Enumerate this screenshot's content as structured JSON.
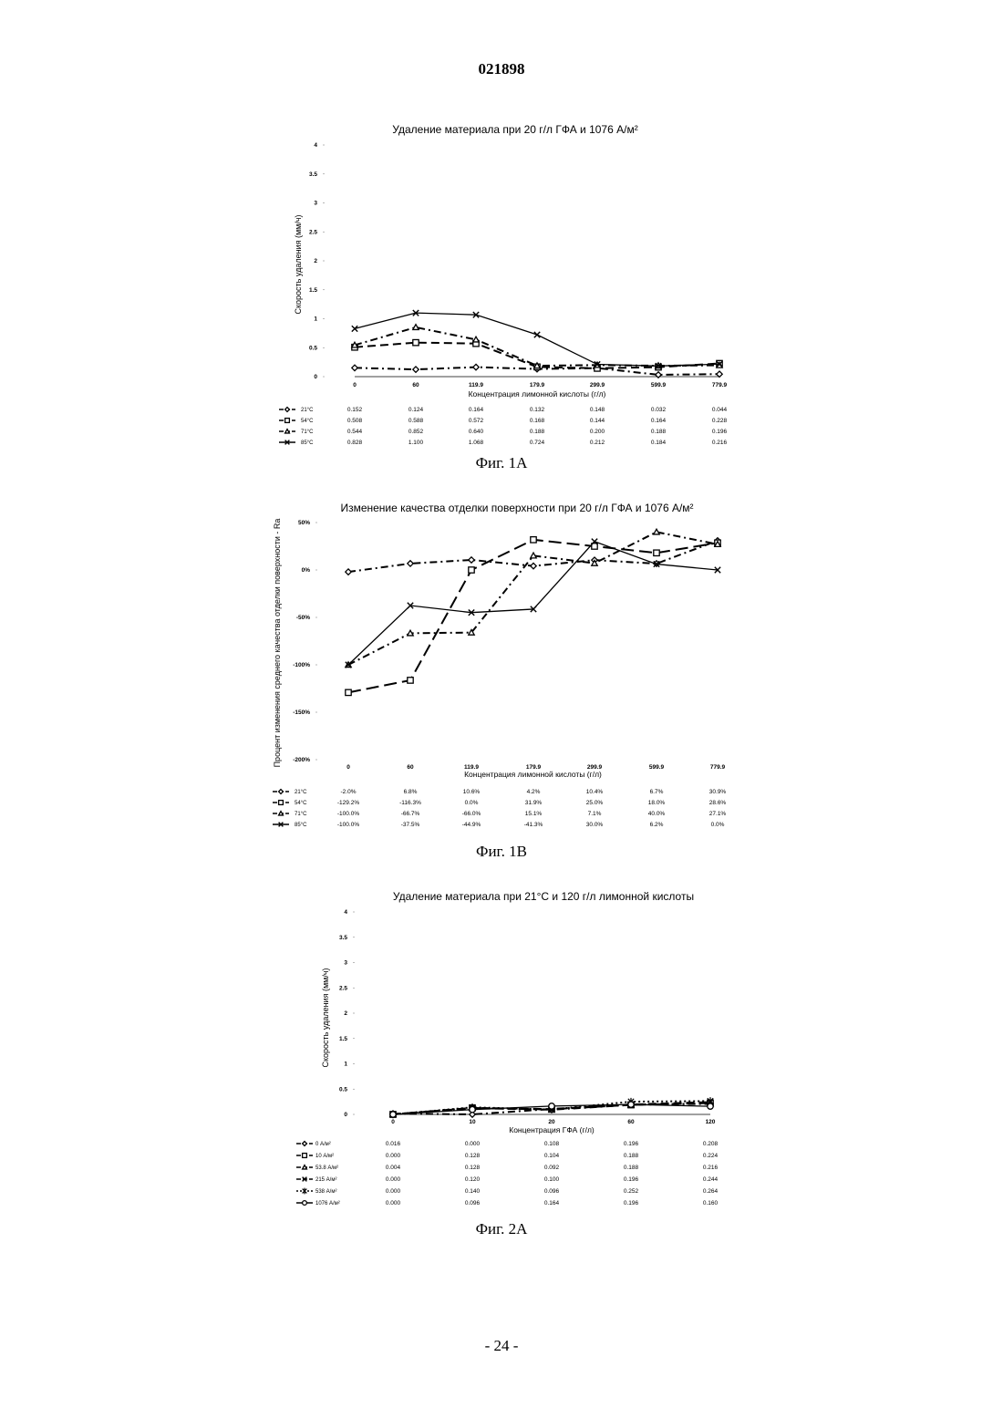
{
  "document": {
    "number": "021898",
    "page": "- 24 -",
    "captions": [
      "Фиг. 1A",
      "Фиг. 1B",
      "Фиг. 2A"
    ]
  },
  "chart_data": [
    {
      "type": "line",
      "title": "Удаление материала при 20 г/л ГФА и 1076 А/м²",
      "xlabel": "Концентрация лимонной кислоты (г/л)",
      "ylabel": "Скорость удаления (мм/ч)",
      "categories": [
        "0",
        "60",
        "119.9",
        "179.9",
        "299.9",
        "599.9",
        "779.9"
      ],
      "ylim": [
        0,
        4
      ],
      "yticks": [
        "4",
        "3.5",
        "3",
        "2.5",
        "2",
        "1.5",
        "1",
        "0.5",
        "0"
      ],
      "legend": "table-left",
      "series": [
        {
          "name": "21°C",
          "values": [
            0.152,
            0.124,
            0.164,
            0.132,
            0.148,
            0.032,
            0.044
          ],
          "labels": [
            "0.152",
            "0.124",
            "0.164",
            "0.132",
            "0.148",
            "0.032",
            "0.044"
          ],
          "marker": "diamond",
          "dash": "dashdot"
        },
        {
          "name": "54°C",
          "values": [
            0.508,
            0.588,
            0.572,
            0.168,
            0.144,
            0.164,
            0.228
          ],
          "labels": [
            "0.508",
            "0.588",
            "0.572",
            "0.168",
            "0.144",
            "0.164",
            "0.228"
          ],
          "marker": "square",
          "dash": "dash"
        },
        {
          "name": "71°C",
          "values": [
            0.544,
            0.852,
            0.64,
            0.188,
            0.2,
            0.188,
            0.196
          ],
          "labels": [
            "0.544",
            "0.852",
            "0.640",
            "0.188",
            "0.200",
            "0.188",
            "0.196"
          ],
          "marker": "triangle",
          "dash": "dashdot"
        },
        {
          "name": "85°C",
          "values": [
            0.828,
            1.1,
            1.068,
            0.724,
            0.212,
            0.184,
            0.216
          ],
          "labels": [
            "0.828",
            "1.100",
            "1.068",
            "0.724",
            "0.212",
            "0.184",
            "0.216"
          ],
          "marker": "x",
          "dash": "solid"
        }
      ]
    },
    {
      "type": "line",
      "title": "Изменение качества отделки поверхности при 20 г/л ГФА и 1076 А/м²",
      "xlabel": "Концентрация лимонной кислоты (г/л)",
      "ylabel": "Процент изменения среднего качества отделки поверхности - Ra",
      "categories": [
        "0",
        "60",
        "119.9",
        "179.9",
        "299.9",
        "599.9",
        "779.9"
      ],
      "ylim": [
        -200,
        50
      ],
      "yticks": [
        "50%",
        "0%",
        "-50%",
        "-100%",
        "-150%",
        "-200%"
      ],
      "legend": "table-left",
      "series": [
        {
          "name": "21°C",
          "values": [
            -2.0,
            6.8,
            10.6,
            4.2,
            10.4,
            6.7,
            30.9
          ],
          "labels": [
            "-2.0%",
            "6.8%",
            "10.6%",
            "4.2%",
            "10.4%",
            "6.7%",
            "30.9%"
          ],
          "marker": "diamond",
          "dash": "dashdot"
        },
        {
          "name": "54°C",
          "values": [
            -129.2,
            -116.3,
            0.0,
            31.9,
            25.0,
            18.0,
            28.6
          ],
          "labels": [
            "-129.2%",
            "-116.3%",
            "0.0%",
            "31.9%",
            "25.0%",
            "18.0%",
            "28.6%"
          ],
          "marker": "square",
          "dash": "longdash"
        },
        {
          "name": "71°C",
          "values": [
            -100.0,
            -66.7,
            -66.0,
            15.1,
            7.1,
            40.0,
            27.1
          ],
          "labels": [
            "-100.0%",
            "-66.7%",
            "-66.0%",
            "15.1%",
            "7.1%",
            "40.0%",
            "27.1%"
          ],
          "marker": "triangle",
          "dash": "dashdot"
        },
        {
          "name": "85°C",
          "values": [
            -100.0,
            -37.5,
            -44.9,
            -41.3,
            30.0,
            6.2,
            0.0
          ],
          "labels": [
            "-100.0%",
            "-37.5%",
            "-44.9%",
            "-41.3%",
            "30.0%",
            "6.2%",
            "0.0%"
          ],
          "marker": "x",
          "dash": "solid"
        }
      ]
    },
    {
      "type": "line",
      "title": "Удаление материала при 21°C и 120 г/л лимонной кислоты",
      "xlabel": "Концентрация ГФА (г/л)",
      "ylabel": "Скорость удаления (мм/ч)",
      "categories": [
        "0",
        "10",
        "20",
        "60",
        "120"
      ],
      "ylim": [
        0,
        4
      ],
      "yticks": [
        "4",
        "3.5",
        "3",
        "2.5",
        "2",
        "1.5",
        "1",
        "0.5",
        "0"
      ],
      "legend": "table-left",
      "series": [
        {
          "name": "0 А/м²",
          "values": [
            0.016,
            0.0,
            0.108,
            0.196,
            0.208
          ],
          "labels": [
            "0.016",
            "0.000",
            "0.108",
            "0.196",
            "0.208"
          ],
          "marker": "diamond",
          "dash": "dashdot"
        },
        {
          "name": "10 А/м²",
          "values": [
            0.0,
            0.128,
            0.104,
            0.188,
            0.224
          ],
          "labels": [
            "0.000",
            "0.128",
            "0.104",
            "0.188",
            "0.224"
          ],
          "marker": "square",
          "dash": "dash"
        },
        {
          "name": "53.8 А/м²",
          "values": [
            0.004,
            0.128,
            0.092,
            0.188,
            0.216
          ],
          "labels": [
            "0.004",
            "0.128",
            "0.092",
            "0.188",
            "0.216"
          ],
          "marker": "triangle",
          "dash": "dashdot"
        },
        {
          "name": "215 А/м²",
          "values": [
            0.0,
            0.12,
            0.1,
            0.196,
            0.244
          ],
          "labels": [
            "0.000",
            "0.120",
            "0.100",
            "0.196",
            "0.244"
          ],
          "marker": "x",
          "dash": "dash"
        },
        {
          "name": "538 А/м²",
          "values": [
            0.0,
            0.14,
            0.096,
            0.252,
            0.264
          ],
          "labels": [
            "0.000",
            "0.140",
            "0.096",
            "0.252",
            "0.264"
          ],
          "marker": "star",
          "dash": "dot"
        },
        {
          "name": "1076 А/м²",
          "values": [
            0.0,
            0.096,
            0.164,
            0.196,
            0.16
          ],
          "labels": [
            "0.000",
            "0.096",
            "0.164",
            "0.196",
            "0.160"
          ],
          "marker": "circle",
          "dash": "solid"
        }
      ]
    }
  ]
}
